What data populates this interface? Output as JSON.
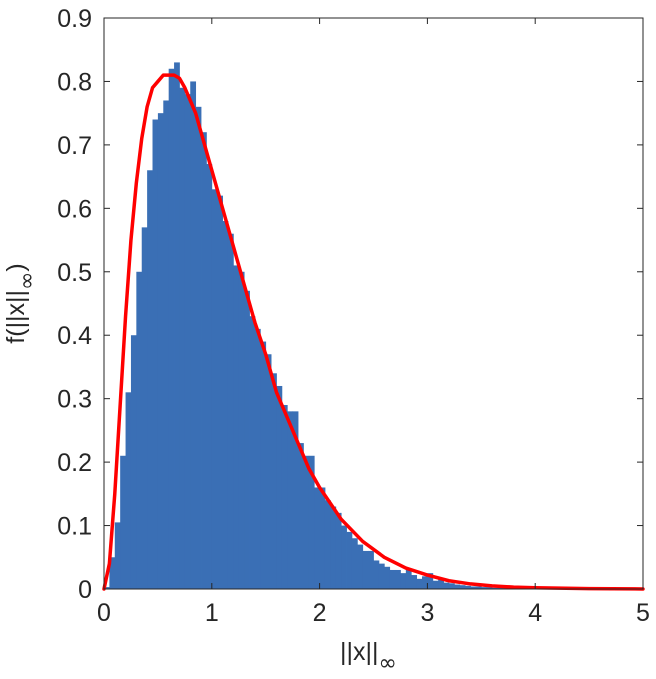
{
  "chart_data": {
    "type": "bar",
    "subtype": "histogram-with-density-curve",
    "title": "",
    "xlabel": "||x||",
    "xlabel_subscript": "∞",
    "ylabel": "f(||x||",
    "ylabel_subscript": "∞",
    "ylabel_suffix": ")",
    "xlim": [
      0,
      5
    ],
    "ylim": [
      0,
      0.9
    ],
    "xticks": [
      "0",
      "1",
      "2",
      "3",
      "4",
      "5"
    ],
    "yticks": [
      "0",
      "0.1",
      "0.2",
      "0.3",
      "0.4",
      "0.5",
      "0.6",
      "0.7",
      "0.8",
      "0.9"
    ],
    "grid": false,
    "legend": "none",
    "histogram": {
      "color": "#3a6fb5",
      "bin_width": 0.05,
      "bin_starts": [
        0.0,
        0.05,
        0.1,
        0.15,
        0.2,
        0.25,
        0.3,
        0.35,
        0.4,
        0.45,
        0.5,
        0.55,
        0.6,
        0.65,
        0.7,
        0.75,
        0.8,
        0.85,
        0.9,
        0.95,
        1.0,
        1.05,
        1.1,
        1.15,
        1.2,
        1.25,
        1.3,
        1.35,
        1.4,
        1.45,
        1.5,
        1.55,
        1.6,
        1.65,
        1.7,
        1.75,
        1.8,
        1.85,
        1.9,
        1.95,
        2.0,
        2.05,
        2.1,
        2.15,
        2.2,
        2.25,
        2.3,
        2.35,
        2.4,
        2.45,
        2.5,
        2.55,
        2.6,
        2.65,
        2.7,
        2.75,
        2.8,
        2.85,
        2.9,
        2.95,
        3.0,
        3.05,
        3.1,
        3.15,
        3.2,
        3.25,
        3.3,
        3.35,
        3.4,
        3.45,
        3.5,
        3.55,
        3.6,
        3.65,
        3.7,
        3.75,
        3.8,
        3.85,
        3.9,
        3.95,
        4.0,
        4.05,
        4.1,
        4.15,
        4.2,
        4.25,
        4.3,
        4.35,
        4.4,
        4.45,
        4.5,
        4.55,
        4.6,
        4.65,
        4.7,
        4.75,
        4.8,
        4.85,
        4.9,
        4.95
      ],
      "values": [
        0.003,
        0.05,
        0.105,
        0.21,
        0.31,
        0.4,
        0.5,
        0.57,
        0.66,
        0.74,
        0.75,
        0.77,
        0.82,
        0.83,
        0.79,
        0.78,
        0.8,
        0.76,
        0.72,
        0.67,
        0.63,
        0.62,
        0.58,
        0.56,
        0.51,
        0.5,
        0.47,
        0.43,
        0.41,
        0.39,
        0.37,
        0.34,
        0.32,
        0.29,
        0.28,
        0.28,
        0.23,
        0.21,
        0.21,
        0.16,
        0.16,
        0.14,
        0.13,
        0.12,
        0.1,
        0.09,
        0.08,
        0.07,
        0.06,
        0.06,
        0.045,
        0.04,
        0.035,
        0.03,
        0.03,
        0.025,
        0.03,
        0.022,
        0.016,
        0.02,
        0.025,
        0.013,
        0.015,
        0.01,
        0.009,
        0.007,
        0.006,
        0.005,
        0.004,
        0.004,
        0.003,
        0.003,
        0.002,
        0.002,
        0.002,
        0.0015,
        0.001,
        0.001,
        0.001,
        0.001,
        0.0008,
        0.0007,
        0.0006,
        0.0005,
        0.0004,
        0.0004,
        0.0003,
        0.0003,
        0.0002,
        0.0002,
        0.0002,
        0.0001,
        0.0001,
        0.0001,
        0.0001,
        0.0001,
        0.0001,
        0.0001,
        0.0001,
        0.0001
      ]
    },
    "density_curve": {
      "color": "#ff0000",
      "x": [
        0.0,
        0.05,
        0.1,
        0.15,
        0.2,
        0.25,
        0.3,
        0.35,
        0.4,
        0.45,
        0.5,
        0.55,
        0.6,
        0.65,
        0.7,
        0.75,
        0.8,
        0.85,
        0.9,
        0.95,
        1.0,
        1.1,
        1.2,
        1.3,
        1.4,
        1.5,
        1.6,
        1.7,
        1.8,
        1.9,
        2.0,
        2.2,
        2.4,
        2.6,
        2.8,
        3.0,
        3.2,
        3.4,
        3.6,
        3.8,
        4.0,
        4.5,
        5.0
      ],
      "y": [
        0.0,
        0.04,
        0.15,
        0.29,
        0.43,
        0.55,
        0.64,
        0.71,
        0.76,
        0.79,
        0.8,
        0.81,
        0.81,
        0.81,
        0.805,
        0.79,
        0.77,
        0.75,
        0.72,
        0.69,
        0.66,
        0.6,
        0.54,
        0.48,
        0.42,
        0.37,
        0.31,
        0.27,
        0.23,
        0.19,
        0.16,
        0.11,
        0.075,
        0.05,
        0.033,
        0.022,
        0.013,
        0.008,
        0.005,
        0.003,
        0.002,
        0.0005,
        0.0001
      ]
    }
  }
}
